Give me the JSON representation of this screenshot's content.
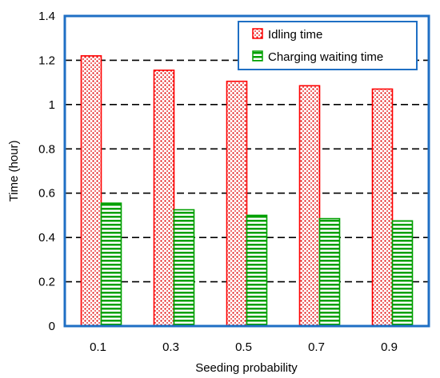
{
  "chart_data": {
    "type": "bar",
    "title": "",
    "xlabel": "Seeding probability",
    "ylabel": "Time (hour)",
    "categories": [
      "0.1",
      "0.3",
      "0.5",
      "0.7",
      "0.9"
    ],
    "ylim": [
      0,
      1.4
    ],
    "yticks": [
      "0",
      "0.2",
      "0.4",
      "0.6",
      "0.8",
      "1",
      "1.2",
      "1.4"
    ],
    "grid": "horizontal dashed",
    "legend_position": "top-right",
    "series": [
      {
        "name": "Idling time",
        "values": [
          1.22,
          1.155,
          1.105,
          1.085,
          1.07
        ],
        "color": "#ff0000",
        "pattern": "red dotted"
      },
      {
        "name": "Charging waiting time",
        "values": [
          0.555,
          0.525,
          0.5,
          0.485,
          0.475
        ],
        "color": "#00a000",
        "pattern": "green horizontal stripes"
      }
    ],
    "frame_color": "#1f6fc4"
  }
}
